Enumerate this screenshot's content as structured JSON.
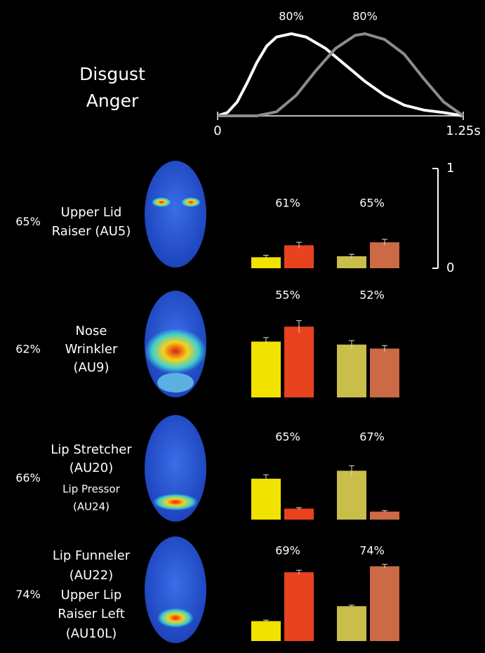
{
  "legend": [
    {
      "name": "Disgust",
      "color": "#f2e200"
    },
    {
      "name": "Anger",
      "color": "#e3262b"
    }
  ],
  "scale_bar": {
    "ylim": [
      0,
      1
    ],
    "yticks": [
      0,
      1
    ]
  },
  "chart_data": [
    {
      "type": "line",
      "xlim": [
        0,
        1.25
      ],
      "ylim": [
        0,
        1
      ],
      "xticks": [
        0,
        {
          "value": 1.25,
          "label": "1.25s"
        }
      ],
      "series": [
        {
          "color": "#ffffff",
          "label": "80%",
          "x": [
            0,
            0.05,
            0.1,
            0.15,
            0.2,
            0.25,
            0.3,
            0.375,
            0.45,
            0.55,
            0.65,
            0.75,
            0.85,
            0.95,
            1.05,
            1.15,
            1.25
          ],
          "values": [
            0,
            0.04,
            0.17,
            0.4,
            0.65,
            0.85,
            0.96,
            1,
            0.96,
            0.82,
            0.62,
            0.42,
            0.25,
            0.13,
            0.07,
            0.04,
            0
          ]
        },
        {
          "color": "#8c8c8c",
          "label": "80%",
          "x": [
            0,
            0.2,
            0.3,
            0.4,
            0.5,
            0.6,
            0.7,
            0.75,
            0.85,
            0.95,
            1.05,
            1.15,
            1.25
          ],
          "values": [
            0,
            0,
            0.05,
            0.25,
            0.55,
            0.82,
            0.98,
            1,
            0.93,
            0.75,
            0.45,
            0.17,
            0
          ]
        }
      ]
    },
    {
      "type": "bar",
      "row_label": "65%",
      "au_labels": [
        "Upper Lid",
        "Raiser (AU5)"
      ],
      "ylim": [
        0,
        1
      ],
      "values": [
        0.11,
        0.23,
        0.12,
        0.26
      ],
      "errors": [
        0.02,
        0.03,
        0.02,
        0.03
      ],
      "colors": [
        "#f2e200",
        "#e8421f",
        "#c9be4a",
        "#cc6a45"
      ],
      "pair_labels": [
        "61%",
        "65%"
      ]
    },
    {
      "type": "bar",
      "row_label": "62%",
      "au_labels": [
        "Nose",
        "Wrinkler",
        "(AU9)"
      ],
      "ylim": [
        0,
        1
      ],
      "values": [
        0.56,
        0.71,
        0.53,
        0.49
      ],
      "errors": [
        0.04,
        0.06,
        0.04,
        0.03
      ],
      "colors": [
        "#f2e200",
        "#e8421f",
        "#c9be4a",
        "#cc6a45"
      ],
      "pair_labels": [
        "55%",
        "52%"
      ]
    },
    {
      "type": "bar",
      "row_label": "66%",
      "au_labels": [
        "Lip Stretcher",
        "(AU20)",
        "Lip Pressor",
        "(AU24)"
      ],
      "ylim": [
        0,
        1
      ],
      "values": [
        0.41,
        0.11,
        0.49,
        0.08
      ],
      "errors": [
        0.04,
        0.01,
        0.05,
        0.01
      ],
      "colors": [
        "#f2e200",
        "#e8421f",
        "#c9be4a",
        "#cc6a45"
      ],
      "pair_labels": [
        "65%",
        "67%"
      ]
    },
    {
      "type": "bar",
      "row_label": "74%",
      "au_labels": [
        "Lip Funneler",
        "(AU22)",
        "Upper Lip",
        "Raiser Left",
        "(AU10L)"
      ],
      "ylim": [
        0,
        1
      ],
      "values": [
        0.2,
        0.69,
        0.35,
        0.75
      ],
      "errors": [
        0.01,
        0.02,
        0.01,
        0.02
      ],
      "colors": [
        "#f2e200",
        "#e8421f",
        "#c9be4a",
        "#cc6a45"
      ],
      "pair_labels": [
        "69%",
        "74%"
      ]
    }
  ]
}
